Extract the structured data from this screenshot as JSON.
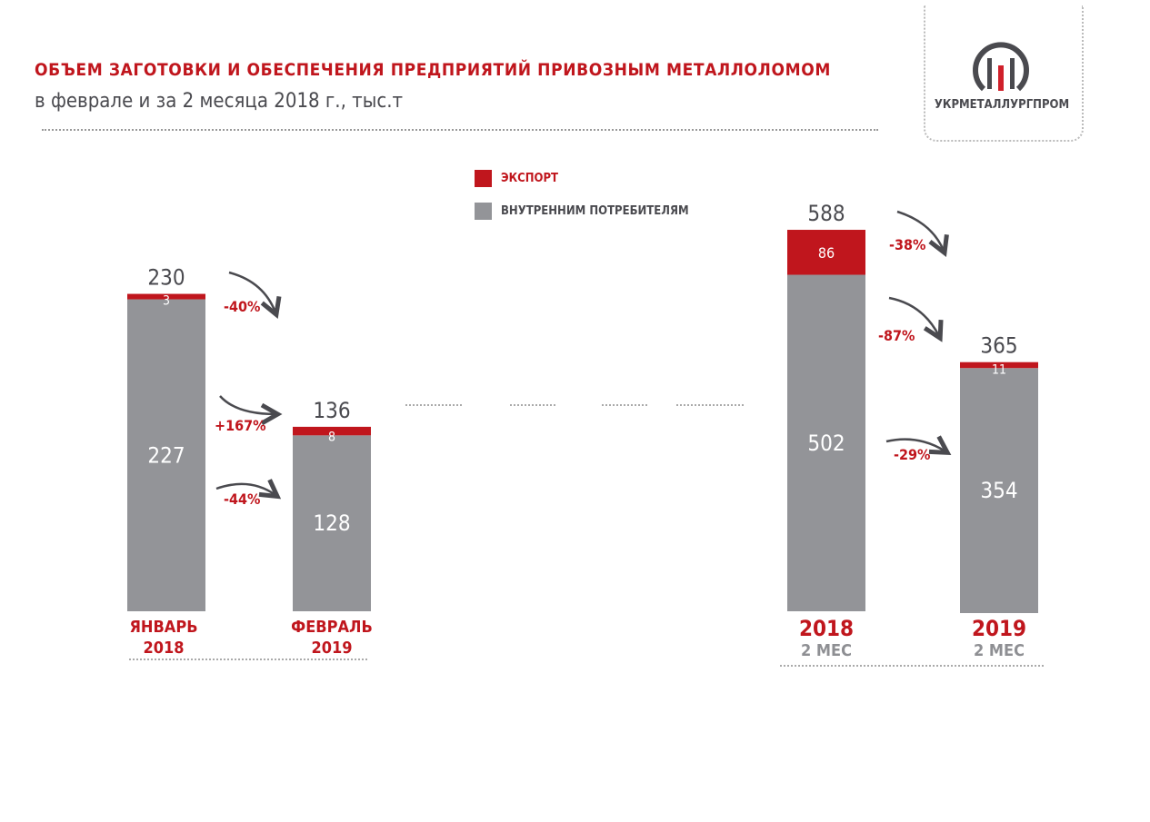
{
  "chart_data": {
    "type": "bar",
    "stacked": true,
    "title": "ОБЪЕМ ЗАГОТОВКИ И ОБЕСПЕЧЕНИЯ ПРЕДПРИЯТИЙ ПРИВОЗНЫМ МЕТАЛЛОЛОМОМ",
    "subtitle": "в феврале и за 2 месяца 2018 г., тыс.т",
    "legend": [
      {
        "name": "ЭКСПОРТ",
        "color": "#c0161d"
      },
      {
        "name": "ВНУТРЕННИМ ПОТРЕБИТЕЛЯМ",
        "color": "#939498"
      }
    ],
    "legend_position": "top-center",
    "bars": [
      {
        "label": "ЯНВАРЬ",
        "sublabel": "2018",
        "domestic": 227,
        "export": 3,
        "total": 230
      },
      {
        "label": "ФЕВРАЛЬ",
        "sublabel": "2019",
        "domestic": 128,
        "export": 8,
        "total": 136
      },
      {
        "label": "2018",
        "sublabel": "2 МЕС",
        "domestic": 502,
        "export": 86,
        "total": 588
      },
      {
        "label": "2019",
        "sublabel": "2 МЕС",
        "domestic": 354,
        "export": 11,
        "total": 365
      }
    ],
    "changes": {
      "monthly_total": "-40%",
      "monthly_export": "+167%",
      "monthly_domestic": "-44%",
      "period_total": "-38%",
      "period_export": "-87%",
      "period_domestic": "-29%"
    }
  },
  "logo": {
    "text": "УКРМЕТАЛЛУРГПРОМ"
  }
}
